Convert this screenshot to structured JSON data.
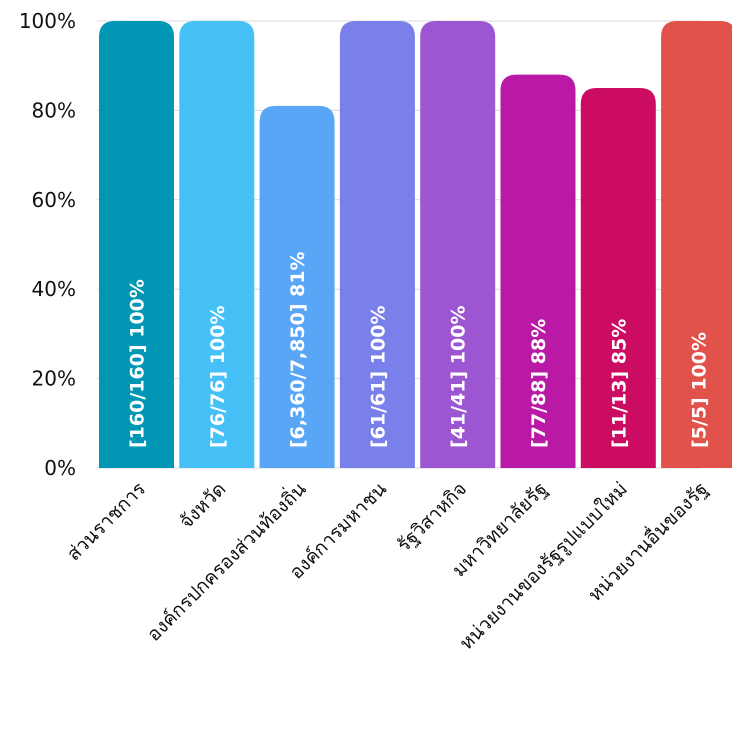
{
  "chart_data": {
    "type": "bar",
    "categories": [
      "ส่วนราชการ",
      "จังหวัด",
      "องค์กรปกครองส่วนท้องถิ่น",
      "องค์การมหาชน",
      "รัฐวิสาหกิจ",
      "มหาวิทยาลัยรัฐ",
      "หน่วยงานของรัฐรูปแบบใหม่",
      "หน่วยงานอื่นของรัฐ"
    ],
    "values": [
      100,
      100,
      81,
      100,
      100,
      88,
      85,
      100
    ],
    "data_labels": [
      "[160/160] 100%",
      "[76/76] 100%",
      "[6,360/7,850] 81%",
      "[61/61] 100%",
      "[41/41] 100%",
      "[77/88] 88%",
      "[11/13] 85%",
      "[5/5] 100%"
    ],
    "colors": [
      "#0096b4",
      "#45c1f7",
      "#5aa6f6",
      "#7a80e9",
      "#9d56d2",
      "#b919a5",
      "#cc0b63",
      "#e0524a"
    ],
    "yticks": [
      "0%",
      "20%",
      "40%",
      "60%",
      "80%",
      "100%"
    ],
    "ylim": [
      0,
      100
    ],
    "grid": true,
    "title": "",
    "xlabel": "",
    "ylabel": ""
  }
}
